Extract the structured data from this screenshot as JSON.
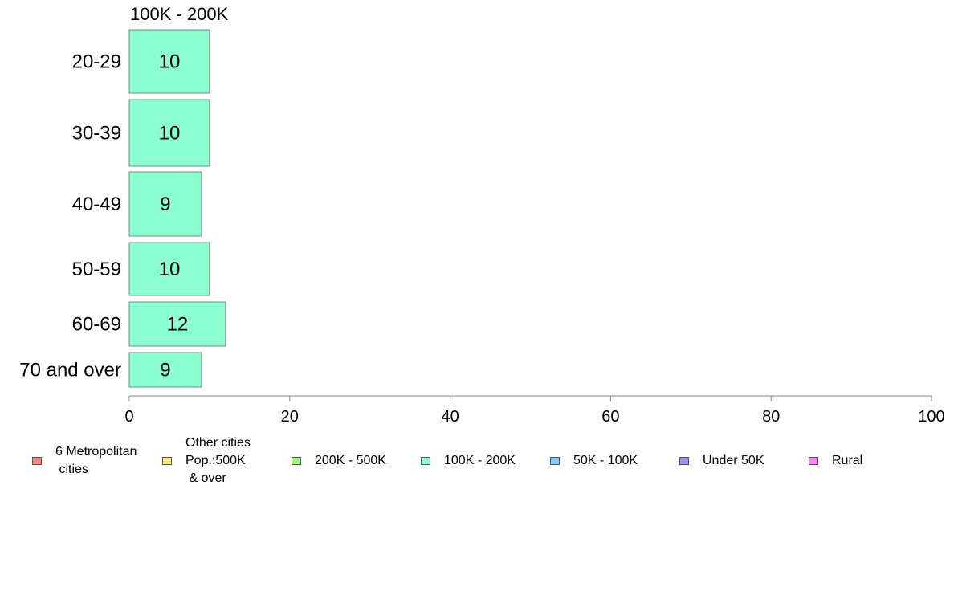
{
  "chart_data": {
    "type": "bar",
    "orientation": "horizontal",
    "title": "100K - 200K",
    "categories": [
      "20-29",
      "30-39",
      "40-49",
      "50-59",
      "60-69",
      "70 and over"
    ],
    "series": [
      {
        "name": "100K - 200K",
        "values": [
          10,
          10,
          9,
          10,
          12,
          9
        ],
        "labels": [
          "10",
          "10",
          "9",
          "10",
          "12",
          "9"
        ],
        "color": "#8bffcf"
      }
    ],
    "xlim": [
      0,
      100
    ],
    "xticks": [
      "0",
      "20",
      "40",
      "60",
      "80",
      "100"
    ],
    "xlabel": "",
    "ylabel": "",
    "grid": false,
    "legend_position": "bottom",
    "legend": [
      {
        "label": "6 Metropolitan\n cities",
        "color": "#f8877f"
      },
      {
        "label": "Other cities\nPop.:500K\n & over",
        "color": "#fde97e"
      },
      {
        "label": "200K - 500K",
        "color": "#a8f57f"
      },
      {
        "label": "100K - 200K",
        "color": "#8bffcf"
      },
      {
        "label": "50K - 100K",
        "color": "#87c9f8"
      },
      {
        "label": "Under 50K",
        "color": "#a78af8"
      },
      {
        "label": "Rural",
        "color": "#fb86f1"
      }
    ]
  }
}
